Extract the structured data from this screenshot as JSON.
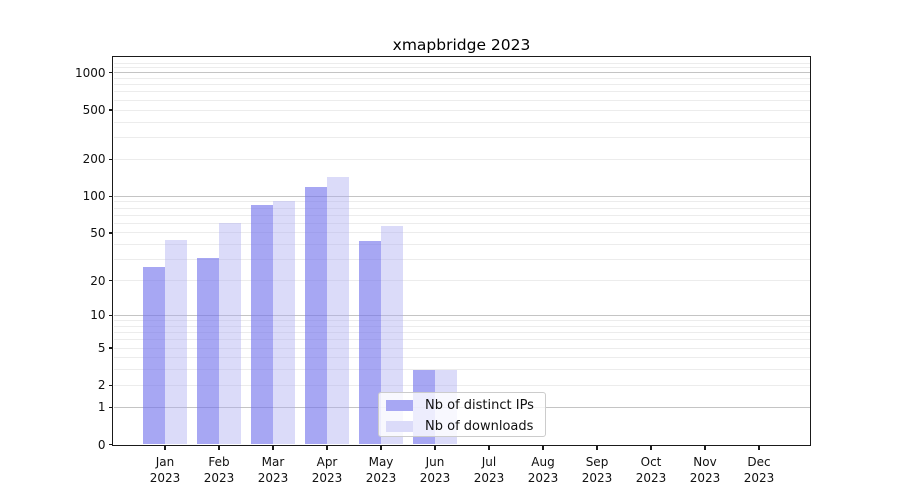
{
  "title": "xmapbridge 2023",
  "legend": {
    "items": [
      {
        "label": "Nb of distinct IPs",
        "swatch_color": "#a7a7f3"
      },
      {
        "label": "Nb of downloads",
        "swatch_color": "#dbdbf9"
      }
    ]
  },
  "y_axis": {
    "tick_labels": [
      "0",
      "1",
      "2",
      "5",
      "10",
      "20",
      "50",
      "100",
      "200",
      "500",
      "1000"
    ]
  },
  "x_axis": {
    "months": [
      "Jan",
      "Feb",
      "Mar",
      "Apr",
      "May",
      "Jun",
      "Jul",
      "Aug",
      "Sep",
      "Oct",
      "Nov",
      "Dec"
    ],
    "year": "2023"
  },
  "chart_data": {
    "type": "bar",
    "title": "xmapbridge 2023",
    "categories": [
      "Jan 2023",
      "Feb 2023",
      "Mar 2023",
      "Apr 2023",
      "May 2023",
      "Jun 2023",
      "Jul 2023",
      "Aug 2023",
      "Sep 2023",
      "Oct 2023",
      "Nov 2023",
      "Dec 2023"
    ],
    "series": [
      {
        "name": "Nb of distinct IPs",
        "values": [
          26,
          31,
          84,
          118,
          43,
          3,
          0,
          0,
          0,
          0,
          0,
          0
        ],
        "color": "#a7a7f3",
        "fill": "rgba(113,113,236,0.62)"
      },
      {
        "name": "Nb of downloads",
        "values": [
          44,
          60,
          92,
          144,
          57,
          3,
          0,
          0,
          0,
          0,
          0,
          0
        ],
        "color": "#dbdbf9",
        "fill": "rgba(170,170,240,0.42)"
      }
    ],
    "yscale": "log1p",
    "yticks": [
      0,
      1,
      2,
      5,
      10,
      20,
      50,
      100,
      200,
      500,
      1000
    ],
    "ylim": [
      0,
      1335
    ],
    "grid": true,
    "legend_position": "inside lower-center",
    "xlabel": "",
    "ylabel": ""
  },
  "colors": {
    "background": "#ffffff",
    "spine": "#1a1a1a",
    "major_grid": "#c4c4c4",
    "minor_grid": "#ececec",
    "text": "#111111"
  }
}
